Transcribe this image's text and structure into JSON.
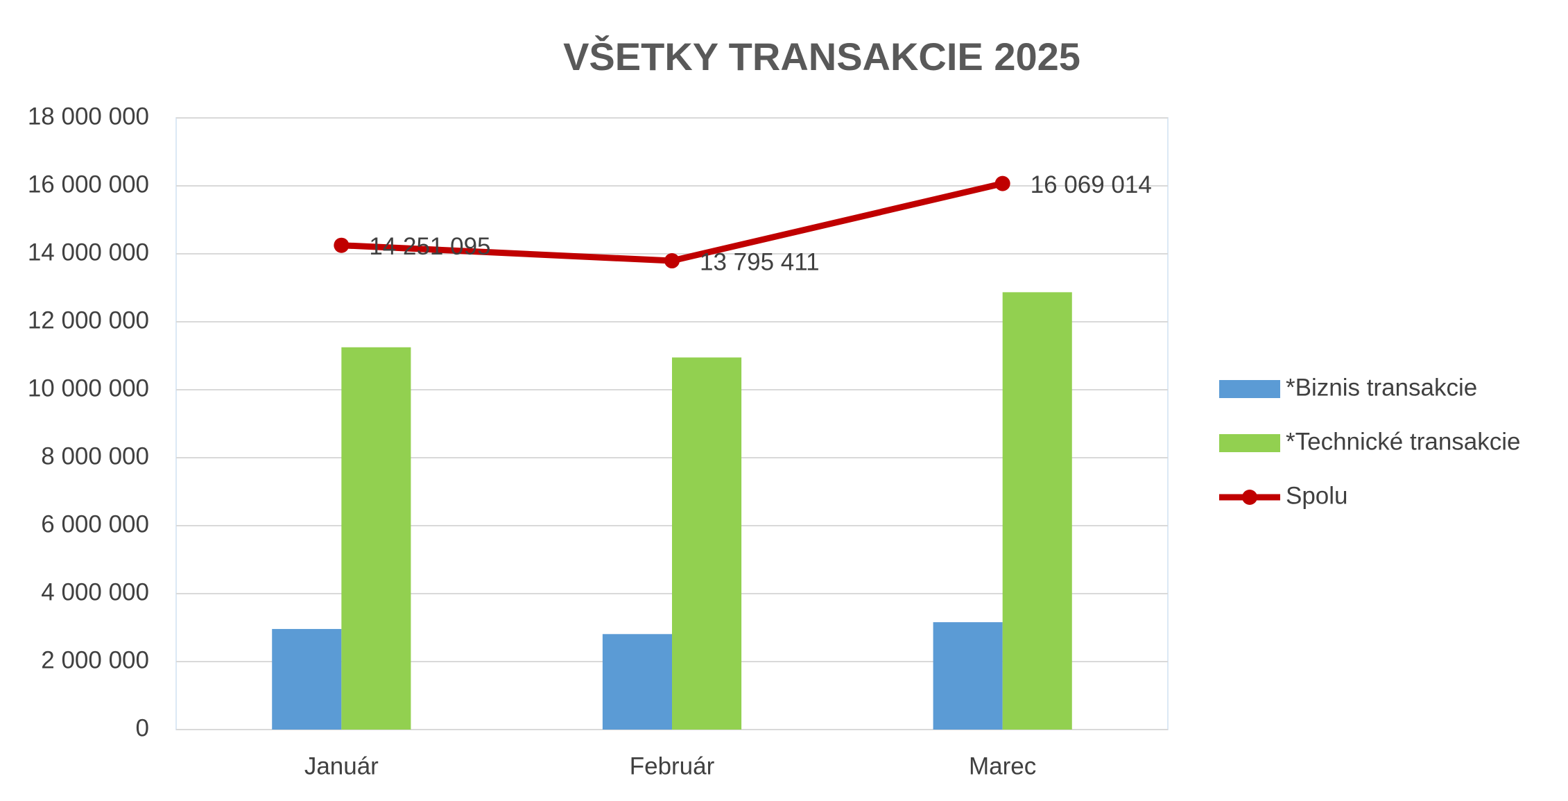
{
  "chart_data": {
    "type": "bar-line",
    "title": "VŠETKY TRANSAKCIE 2025",
    "categories": [
      "Január",
      "Február",
      "Marec"
    ],
    "series": [
      {
        "name": "*Biznis transakcie",
        "type": "bar",
        "color": "#5b9bd5",
        "values": [
          2960000,
          2810000,
          3160000
        ]
      },
      {
        "name": "*Technické transakcie",
        "type": "bar",
        "color": "#92d050",
        "values": [
          11250000,
          10950000,
          12870000
        ]
      },
      {
        "name": "Spolu",
        "type": "line",
        "color": "#c00000",
        "values": [
          14251095,
          13795411,
          16069014
        ],
        "value_labels": [
          "14 251 095",
          "13 795 411",
          "16 069 014"
        ]
      }
    ],
    "ylim": [
      0,
      18000000
    ],
    "yticks": [
      0,
      {
        "value": 2000000,
        "label": "2 000 000"
      },
      {
        "value": 4000000,
        "label": "4 000 000"
      },
      {
        "value": 6000000,
        "label": "6 000 000"
      },
      {
        "value": 8000000,
        "label": "8 000 000"
      },
      {
        "value": 10000000,
        "label": "10 000 000"
      },
      {
        "value": 12000000,
        "label": "12 000 000"
      },
      {
        "value": 14000000,
        "label": "14 000 000"
      },
      {
        "value": 16000000,
        "label": "16 000 000"
      },
      {
        "value": 18000000,
        "label": "18 000 000"
      }
    ],
    "grid": true,
    "legend": "right"
  }
}
